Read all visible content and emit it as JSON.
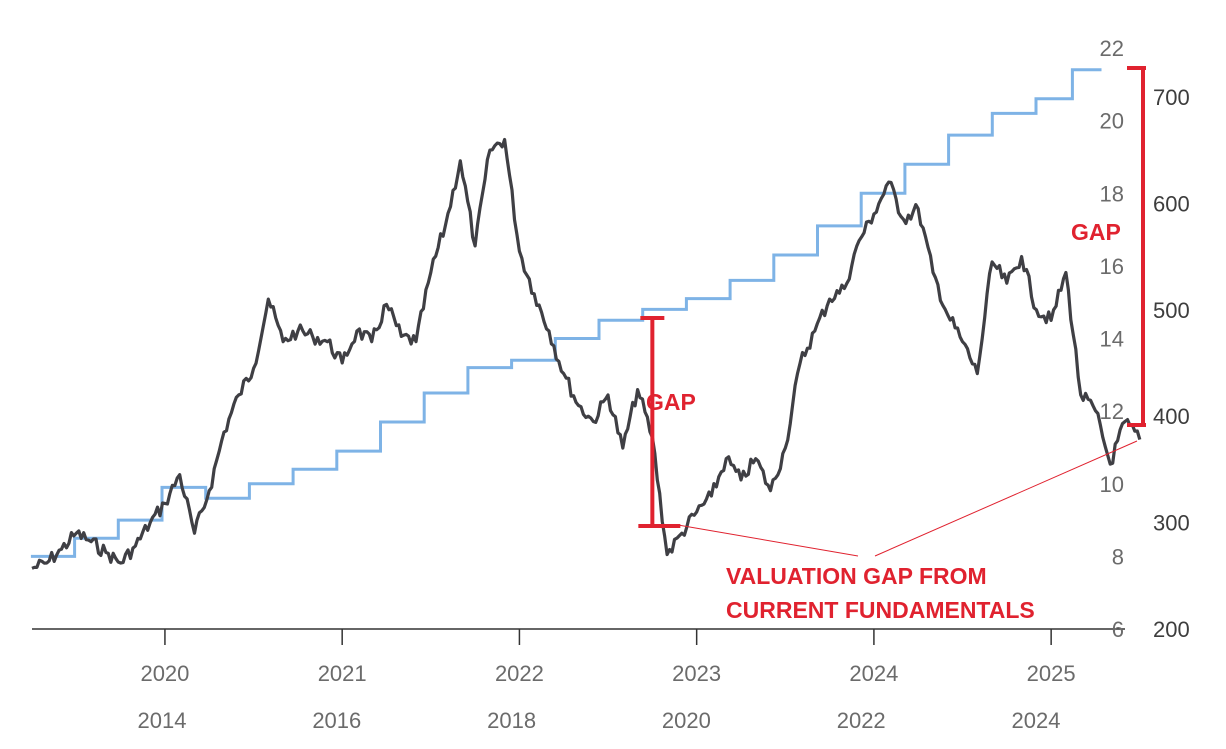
{
  "chart_data": {
    "type": "line",
    "title": "",
    "xlabel": "",
    "ylabel": "",
    "x_axis_top": {
      "labels": [
        "2020",
        "2021",
        "2022",
        "2023",
        "2024",
        "2025"
      ],
      "range": [
        "2019-04",
        "2025-06"
      ]
    },
    "x_axis_bottom": {
      "labels": [
        "2014",
        "2016",
        "2018",
        "2020",
        "2022",
        "2024"
      ]
    },
    "y_axis_left": {
      "ticks": [
        "6",
        "8",
        "10",
        "12",
        "14",
        "16",
        "18",
        "20",
        "22"
      ],
      "ylim": [
        6,
        22
      ]
    },
    "y_axis_right": {
      "ticks": [
        "200",
        "300",
        "400",
        "500",
        "600",
        "700"
      ],
      "ylim": [
        200,
        730
      ]
    },
    "series": [
      {
        "color": "#3f3f44",
        "axis": "right",
        "x_axis": "top",
        "points": [
          [
            "2019-04",
            257
          ],
          [
            "2019-05",
            262
          ],
          [
            "2019-06",
            275
          ],
          [
            "2019-07",
            290
          ],
          [
            "2019-08",
            282
          ],
          [
            "2019-09",
            272
          ],
          [
            "2019-10",
            262
          ],
          [
            "2019-11",
            278
          ],
          [
            "2019-12",
            300
          ],
          [
            "2020-01",
            318
          ],
          [
            "2020-02",
            345
          ],
          [
            "2020-03",
            290
          ],
          [
            "2020-04",
            330
          ],
          [
            "2020-05",
            385
          ],
          [
            "2020-06",
            420
          ],
          [
            "2020-07",
            445
          ],
          [
            "2020-08",
            510
          ],
          [
            "2020-09",
            470
          ],
          [
            "2020-10",
            480
          ],
          [
            "2020-11",
            475
          ],
          [
            "2020-12",
            470
          ],
          [
            "2021-01",
            450
          ],
          [
            "2021-02",
            480
          ],
          [
            "2021-03",
            470
          ],
          [
            "2021-04",
            505
          ],
          [
            "2021-05",
            475
          ],
          [
            "2021-06",
            470
          ],
          [
            "2021-07",
            535
          ],
          [
            "2021-08",
            580
          ],
          [
            "2021-09",
            640
          ],
          [
            "2021-10",
            560
          ],
          [
            "2021-11",
            650
          ],
          [
            "2021-12",
            660
          ],
          [
            "2022-01",
            555
          ],
          [
            "2022-02",
            515
          ],
          [
            "2022-03",
            480
          ],
          [
            "2022-04",
            440
          ],
          [
            "2022-05",
            410
          ],
          [
            "2022-06",
            395
          ],
          [
            "2022-07",
            420
          ],
          [
            "2022-08",
            370
          ],
          [
            "2022-09",
            425
          ],
          [
            "2022-10",
            380
          ],
          [
            "2022-11",
            270
          ],
          [
            "2022-12",
            290
          ],
          [
            "2023-01",
            310
          ],
          [
            "2023-02",
            325
          ],
          [
            "2023-03",
            360
          ],
          [
            "2023-04",
            340
          ],
          [
            "2023-05",
            360
          ],
          [
            "2023-06",
            330
          ],
          [
            "2023-07",
            370
          ],
          [
            "2023-08",
            450
          ],
          [
            "2023-09",
            480
          ],
          [
            "2023-10",
            510
          ],
          [
            "2023-11",
            520
          ],
          [
            "2023-12",
            565
          ],
          [
            "2024-01",
            590
          ],
          [
            "2024-02",
            620
          ],
          [
            "2024-03",
            585
          ],
          [
            "2024-04",
            595
          ],
          [
            "2024-05",
            535
          ],
          [
            "2024-06",
            495
          ],
          [
            "2024-07",
            470
          ],
          [
            "2024-08",
            440
          ],
          [
            "2024-09",
            545
          ],
          [
            "2024-10",
            525
          ],
          [
            "2024-11",
            550
          ],
          [
            "2024-12",
            500
          ],
          [
            "2025-01",
            490
          ],
          [
            "2025-02",
            535
          ],
          [
            "2025-03",
            420
          ],
          [
            "2025-04",
            405
          ],
          [
            "2025-05",
            355
          ],
          [
            "2025-06",
            395
          ],
          [
            "2025-07",
            378
          ]
        ]
      },
      {
        "color": "#7eb3e6",
        "axis": "left",
        "x_axis": "bottom",
        "points": [
          [
            "2012-07",
            8.0
          ],
          [
            "2013-01",
            8.5
          ],
          [
            "2013-07",
            9.0
          ],
          [
            "2014-01",
            9.9
          ],
          [
            "2014-07",
            9.6
          ],
          [
            "2015-01",
            10.0
          ],
          [
            "2015-07",
            10.4
          ],
          [
            "2016-01",
            10.9
          ],
          [
            "2016-07",
            11.7
          ],
          [
            "2017-01",
            12.5
          ],
          [
            "2017-07",
            13.2
          ],
          [
            "2018-01",
            13.4
          ],
          [
            "2018-07",
            14.0
          ],
          [
            "2019-01",
            14.5
          ],
          [
            "2019-07",
            14.8
          ],
          [
            "2020-01",
            15.1
          ],
          [
            "2020-07",
            15.6
          ],
          [
            "2021-01",
            16.3
          ],
          [
            "2021-07",
            17.1
          ],
          [
            "2022-01",
            18.0
          ],
          [
            "2022-07",
            18.8
          ],
          [
            "2023-01",
            19.6
          ],
          [
            "2023-07",
            20.2
          ],
          [
            "2024-01",
            20.6
          ],
          [
            "2024-06",
            21.4
          ]
        ]
      }
    ],
    "annotations": {
      "gap_left": "GAP",
      "gap_right": "GAP",
      "note_line1": "VALUATION GAP FROM",
      "note_line2": "CURRENT FUNDAMENTALS"
    },
    "colors": {
      "price_line": "#3f3f44",
      "fundamentals_line": "#7eb3e6",
      "gap": "#e0222f",
      "axis": "#333333"
    }
  }
}
